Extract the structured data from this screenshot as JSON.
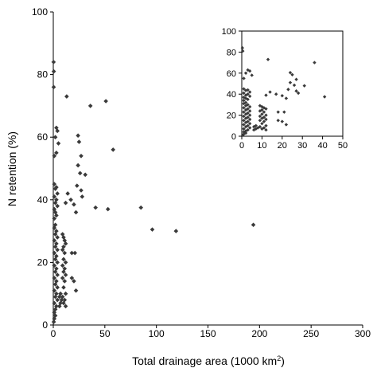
{
  "chart_data": [
    {
      "type": "scatter",
      "xlabel_prefix": "Total drainage area (1000 km",
      "xlabel_sup": "2",
      "xlabel_suffix": ")",
      "ylabel": "N retention (%)",
      "xlim": [
        0,
        300
      ],
      "ylim": [
        0,
        100
      ],
      "xticks": [
        "0",
        "50",
        "100",
        "150",
        "200",
        "250",
        "300"
      ],
      "yticks": [
        "0",
        "20",
        "40",
        "60",
        "80",
        "100"
      ],
      "marker_color": "#3a3a3a",
      "points": [
        [
          0.3,
          84
        ],
        [
          0.5,
          81
        ],
        [
          0.4,
          76
        ],
        [
          13,
          73
        ],
        [
          36,
          70
        ],
        [
          51,
          71.5
        ],
        [
          58,
          56
        ],
        [
          3,
          63
        ],
        [
          4,
          62
        ],
        [
          2,
          60
        ],
        [
          5,
          58
        ],
        [
          3,
          55
        ],
        [
          1,
          54
        ],
        [
          24,
          60.5
        ],
        [
          25,
          58.5
        ],
        [
          27,
          54
        ],
        [
          24,
          51
        ],
        [
          26,
          48.5
        ],
        [
          31,
          48
        ],
        [
          23,
          44.5
        ],
        [
          27,
          43
        ],
        [
          28,
          41
        ],
        [
          14,
          42
        ],
        [
          17,
          40
        ],
        [
          12,
          39
        ],
        [
          20,
          38.5
        ],
        [
          22,
          36
        ],
        [
          41,
          37.5
        ],
        [
          53,
          37
        ],
        [
          85,
          37.5
        ],
        [
          96,
          30.5
        ],
        [
          119,
          30
        ],
        [
          194,
          32
        ],
        [
          1,
          45
        ],
        [
          3,
          44
        ],
        [
          2,
          43.5
        ],
        [
          4,
          42
        ],
        [
          1,
          41
        ],
        [
          3,
          40
        ],
        [
          2,
          39
        ],
        [
          4,
          38
        ],
        [
          1,
          37
        ],
        [
          2,
          36
        ],
        [
          3,
          35
        ],
        [
          1,
          34
        ],
        [
          2,
          32
        ],
        [
          1,
          31
        ],
        [
          3,
          30
        ],
        [
          2,
          29
        ],
        [
          4,
          28
        ],
        [
          1,
          27
        ],
        [
          3,
          26
        ],
        [
          2,
          25
        ],
        [
          4,
          24
        ],
        [
          1,
          23
        ],
        [
          3,
          22
        ],
        [
          2,
          21
        ],
        [
          4,
          20
        ],
        [
          1,
          19
        ],
        [
          3,
          18
        ],
        [
          2,
          17
        ],
        [
          4,
          16
        ],
        [
          1,
          15
        ],
        [
          3,
          14
        ],
        [
          2,
          13
        ],
        [
          4,
          12
        ],
        [
          1,
          11
        ],
        [
          3,
          10
        ],
        [
          2,
          9
        ],
        [
          4,
          8
        ],
        [
          1,
          7
        ],
        [
          3,
          6
        ],
        [
          2,
          5
        ],
        [
          1,
          4
        ],
        [
          2,
          3
        ],
        [
          1,
          2
        ],
        [
          0.5,
          1
        ],
        [
          9,
          29
        ],
        [
          10,
          28
        ],
        [
          11,
          27
        ],
        [
          12,
          26
        ],
        [
          10,
          25
        ],
        [
          9,
          24
        ],
        [
          11,
          23
        ],
        [
          18,
          23
        ],
        [
          21,
          23
        ],
        [
          10,
          21
        ],
        [
          12,
          20
        ],
        [
          9,
          19
        ],
        [
          11,
          18
        ],
        [
          10,
          17
        ],
        [
          12,
          16
        ],
        [
          9,
          15
        ],
        [
          11,
          14
        ],
        [
          18,
          15
        ],
        [
          20,
          14
        ],
        [
          22,
          11
        ],
        [
          10,
          12
        ],
        [
          12,
          10
        ],
        [
          9,
          9
        ],
        [
          11,
          8
        ],
        [
          10,
          7
        ],
        [
          12,
          6
        ],
        [
          6,
          6
        ],
        [
          7,
          7
        ],
        [
          8,
          8
        ],
        [
          6,
          9
        ],
        [
          7,
          10
        ]
      ]
    },
    {
      "type": "scatter",
      "inset": true,
      "xlim": [
        0,
        50
      ],
      "ylim": [
        0,
        100
      ],
      "xticks": [
        "0",
        "10",
        "20",
        "30",
        "40",
        "50"
      ],
      "yticks": [
        "0",
        "20",
        "40",
        "60",
        "80",
        "100"
      ],
      "marker_color": "#3a3a3a",
      "points": [
        [
          0.3,
          84
        ],
        [
          0.5,
          81
        ],
        [
          13,
          73
        ],
        [
          36,
          70
        ],
        [
          3,
          63
        ],
        [
          4,
          62
        ],
        [
          2,
          60
        ],
        [
          5,
          58
        ],
        [
          1,
          55
        ],
        [
          24,
          60.5
        ],
        [
          25,
          58.5
        ],
        [
          27,
          54
        ],
        [
          24,
          51
        ],
        [
          26,
          48.5
        ],
        [
          31,
          48
        ],
        [
          23,
          44.5
        ],
        [
          27,
          43
        ],
        [
          28,
          41
        ],
        [
          14,
          42
        ],
        [
          17,
          40
        ],
        [
          12,
          39
        ],
        [
          20,
          38.5
        ],
        [
          22,
          36
        ],
        [
          41,
          37.5
        ],
        [
          1,
          45
        ],
        [
          3,
          44
        ],
        [
          2,
          43.5
        ],
        [
          4,
          42
        ],
        [
          1,
          41
        ],
        [
          3,
          40
        ],
        [
          2,
          39
        ],
        [
          4,
          38
        ],
        [
          1,
          37
        ],
        [
          2,
          36
        ],
        [
          3,
          35
        ],
        [
          1,
          34
        ],
        [
          2,
          32
        ],
        [
          1,
          31
        ],
        [
          3,
          30
        ],
        [
          2,
          29
        ],
        [
          4,
          28
        ],
        [
          1,
          27
        ],
        [
          3,
          26
        ],
        [
          2,
          25
        ],
        [
          4,
          24
        ],
        [
          1,
          23
        ],
        [
          3,
          22
        ],
        [
          2,
          21
        ],
        [
          4,
          20
        ],
        [
          1,
          19
        ],
        [
          3,
          18
        ],
        [
          2,
          17
        ],
        [
          4,
          16
        ],
        [
          1,
          15
        ],
        [
          3,
          14
        ],
        [
          2,
          13
        ],
        [
          4,
          12
        ],
        [
          1,
          11
        ],
        [
          3,
          10
        ],
        [
          2,
          9
        ],
        [
          4,
          8
        ],
        [
          1,
          7
        ],
        [
          3,
          6
        ],
        [
          2,
          5
        ],
        [
          1,
          4
        ],
        [
          2,
          3
        ],
        [
          1,
          2
        ],
        [
          0.5,
          1
        ],
        [
          9,
          29
        ],
        [
          10,
          28
        ],
        [
          11,
          27
        ],
        [
          12,
          26
        ],
        [
          10,
          25
        ],
        [
          9,
          24
        ],
        [
          11,
          23
        ],
        [
          18,
          23
        ],
        [
          21,
          23
        ],
        [
          10,
          21
        ],
        [
          12,
          20
        ],
        [
          9,
          19
        ],
        [
          11,
          18
        ],
        [
          10,
          17
        ],
        [
          12,
          16
        ],
        [
          9,
          15
        ],
        [
          11,
          14
        ],
        [
          18,
          15
        ],
        [
          20,
          14
        ],
        [
          22,
          11
        ],
        [
          10,
          12
        ],
        [
          12,
          10
        ],
        [
          9,
          9
        ],
        [
          11,
          8
        ],
        [
          10,
          7
        ],
        [
          12,
          6
        ],
        [
          6,
          6
        ],
        [
          7,
          7
        ],
        [
          8,
          8
        ],
        [
          6,
          9
        ],
        [
          7,
          10
        ]
      ]
    }
  ]
}
